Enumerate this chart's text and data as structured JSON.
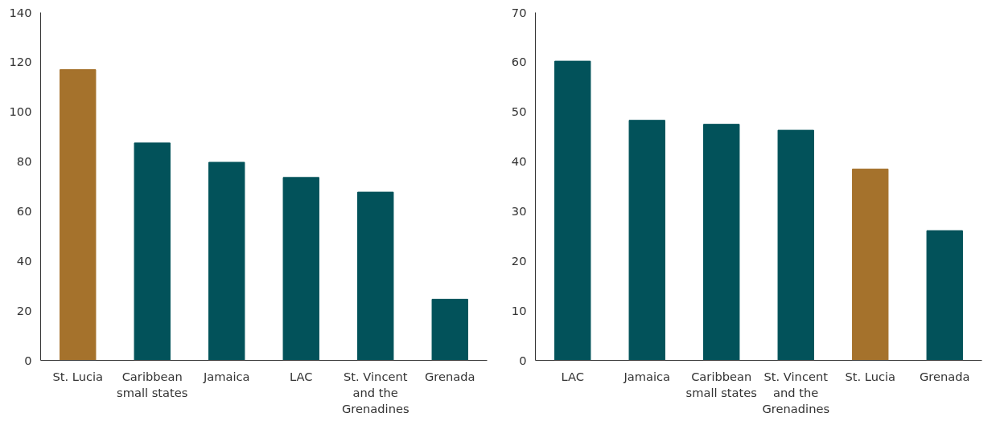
{
  "chart_data": [
    {
      "type": "bar",
      "categories": [
        "St. Lucia",
        "Caribbean\nsmall states",
        "Jamaica",
        "LAC",
        "St. Vincent\nand the\nGrenadines",
        "Grenada"
      ],
      "values": [
        117,
        87.5,
        79.7,
        73.6,
        67.7,
        24.6
      ],
      "colors": [
        "#a5722c",
        "#02525a",
        "#02525a",
        "#02525a",
        "#02525a",
        "#02525a"
      ],
      "ylim": [
        0,
        140
      ],
      "yticks": [
        0,
        20,
        40,
        60,
        80,
        100,
        120,
        140
      ],
      "grid": false
    },
    {
      "type": "bar",
      "categories": [
        "LAC",
        "Jamaica",
        "Caribbean\nsmall states",
        "St. Vincent\nand the\nGrenadines",
        "St. Lucia",
        "Grenada"
      ],
      "values": [
        60.2,
        48.3,
        47.5,
        46.3,
        38.5,
        26.1
      ],
      "colors": [
        "#02525a",
        "#02525a",
        "#02525a",
        "#02525a",
        "#a5722c",
        "#02525a"
      ],
      "ylim": [
        0,
        70
      ],
      "yticks": [
        0,
        10,
        20,
        30,
        40,
        50,
        60,
        70
      ],
      "grid": false
    }
  ]
}
